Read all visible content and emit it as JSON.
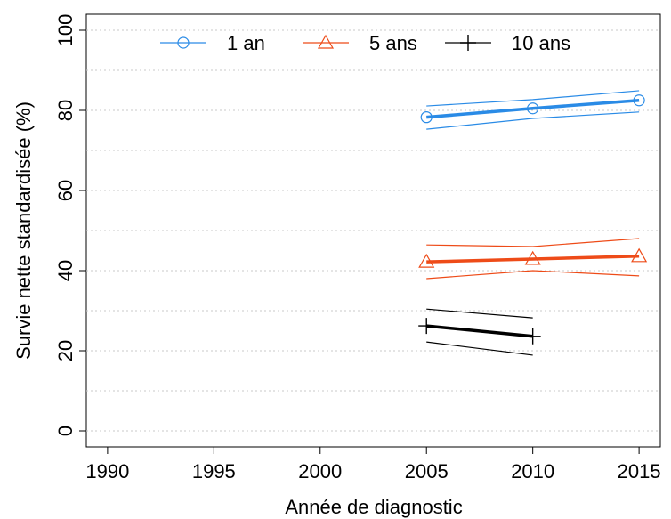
{
  "chart_data": {
    "type": "line",
    "xlabel": "Année de diagnostic",
    "ylabel": "Survie nette standardisée (%)",
    "x": [
      2005,
      2010,
      2015
    ],
    "series": [
      {
        "name": "1 an",
        "color": "#2a8be6",
        "marker": "circle",
        "values": [
          78.3,
          80.5,
          82.5
        ],
        "ci_upper": [
          81.1,
          82.7,
          84.9
        ],
        "ci_lower": [
          75.3,
          78.0,
          79.6
        ]
      },
      {
        "name": "5 ans",
        "color": "#ee4b18",
        "marker": "triangle",
        "values": [
          42.2,
          42.9,
          43.6
        ],
        "ci_upper": [
          46.4,
          46.0,
          48.0
        ],
        "ci_lower": [
          38.0,
          40.0,
          38.7
        ]
      },
      {
        "name": "10 ans",
        "color": "#000000",
        "marker": "plus",
        "values": [
          26.2,
          23.6,
          null
        ],
        "ci_upper": [
          30.4,
          28.2,
          null
        ],
        "ci_lower": [
          22.2,
          18.9,
          null
        ]
      }
    ],
    "xlim": [
      1989,
      2016
    ],
    "xticks": [
      1990,
      1995,
      2000,
      2005,
      2010,
      2015
    ],
    "ylim": [
      -4,
      104
    ],
    "yticks": [
      0,
      20,
      40,
      60,
      80,
      100
    ],
    "ygrid": [
      0,
      10,
      20,
      30,
      40,
      50,
      60,
      70,
      80,
      90,
      100
    ],
    "legend": "top"
  }
}
